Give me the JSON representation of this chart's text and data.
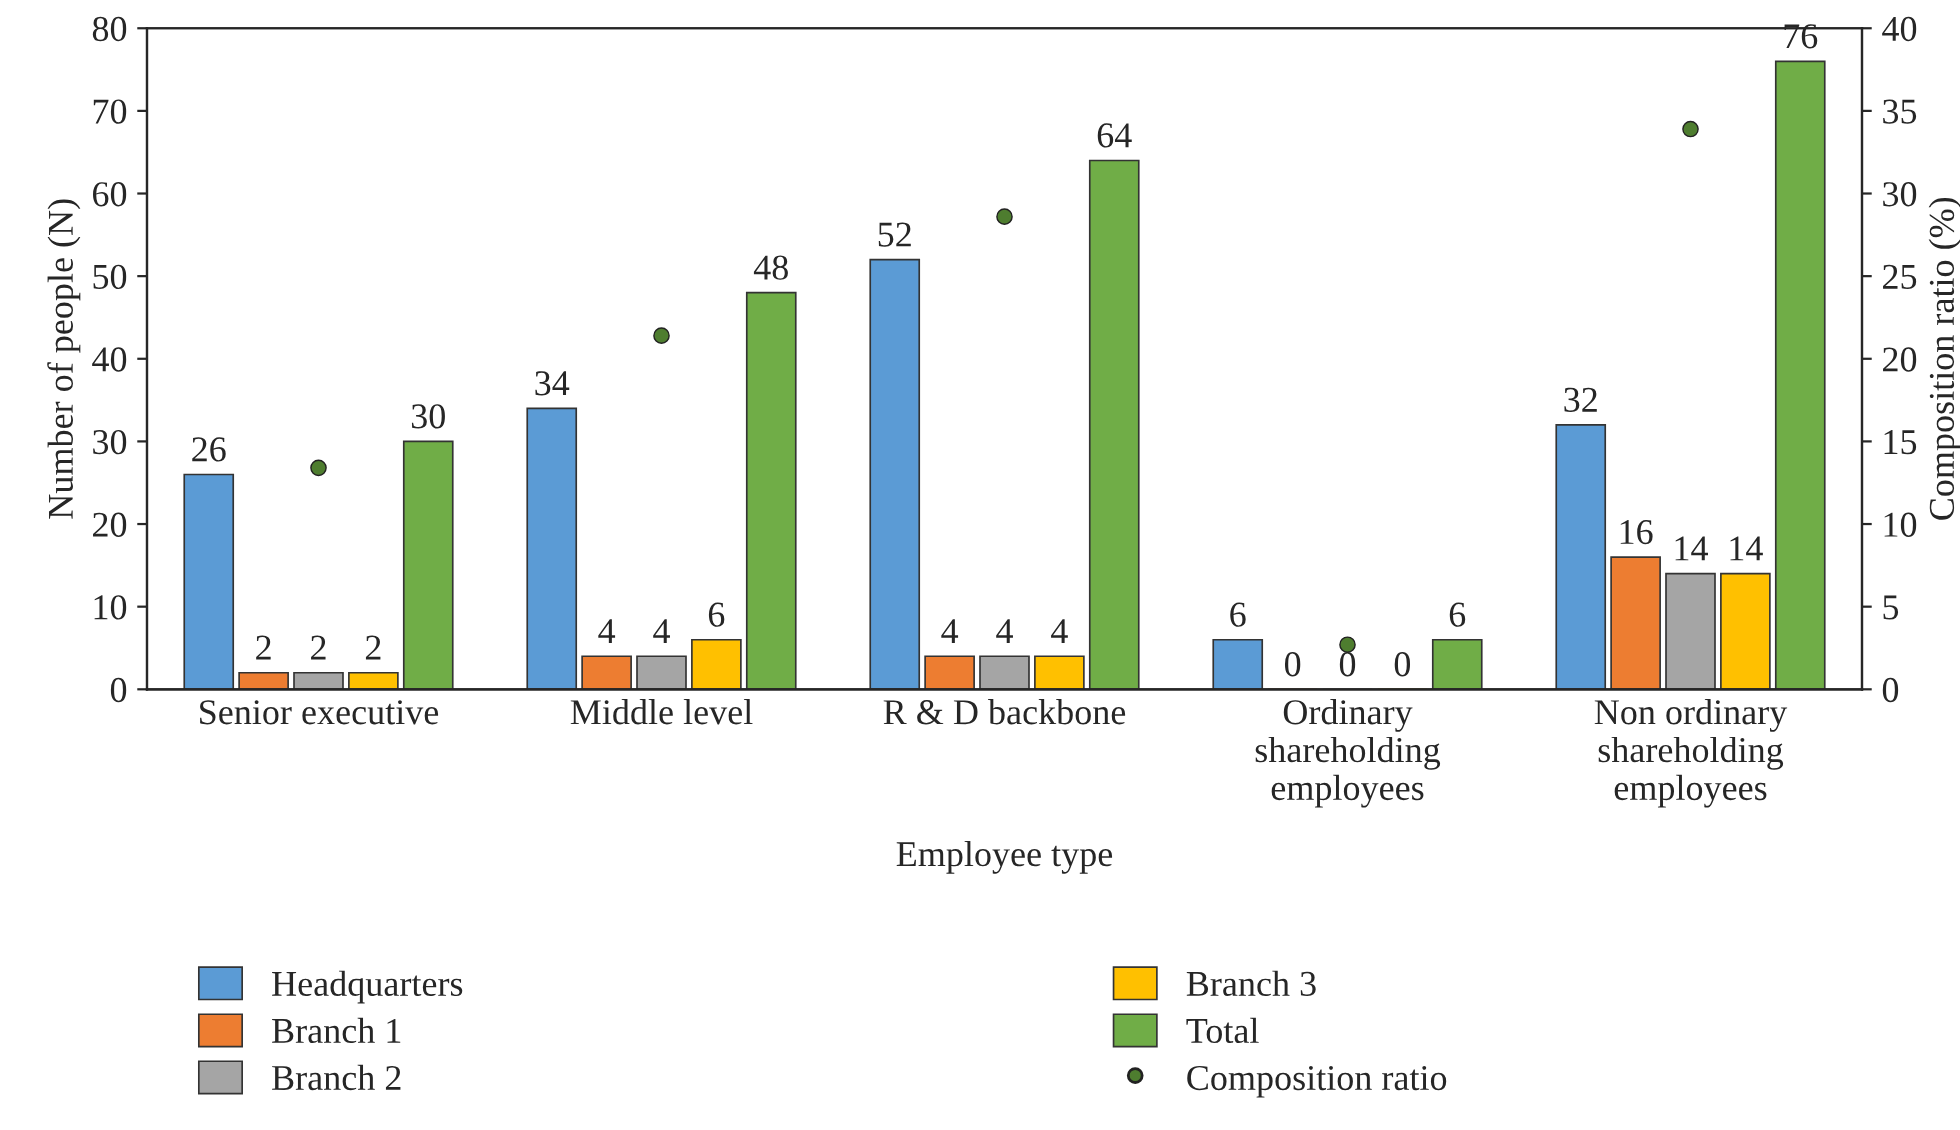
{
  "chart_data": {
    "type": "bar",
    "xlabel": "Employee type",
    "ylabel": "Number of people (N)",
    "y2label": "Composition ratio (%)",
    "categories": [
      "Senior executive",
      "Middle level",
      "R & D backbone",
      "Ordinary\nshareholding\nemployees",
      "Non ordinary\nshareholding\nemployees"
    ],
    "series": [
      {
        "name": "Headquarters",
        "color": "#5b9bd5",
        "values": [
          26,
          34,
          52,
          6,
          32
        ],
        "value_labels": [
          "26",
          "34",
          "52",
          "6",
          "32"
        ]
      },
      {
        "name": "Branch 1",
        "color": "#ed7d31",
        "values": [
          2,
          4,
          4,
          0,
          16
        ],
        "value_labels": [
          "2",
          "4",
          "4",
          "0",
          "16"
        ]
      },
      {
        "name": "Branch 2",
        "color": "#a5a5a5",
        "values": [
          2,
          4,
          4,
          0,
          14
        ],
        "value_labels": [
          "2",
          "4",
          "4",
          "0",
          "14"
        ]
      },
      {
        "name": "Branch 3",
        "color": "#ffc000",
        "values": [
          2,
          6,
          4,
          0,
          14
        ],
        "value_labels": [
          "2",
          "6",
          "4",
          "0",
          "14"
        ]
      },
      {
        "name": "Total",
        "color": "#70ad47",
        "values": [
          30,
          48,
          64,
          6,
          76
        ],
        "value_labels": [
          "30",
          "48",
          "64",
          "6",
          "76"
        ]
      },
      {
        "name": "Composition ratio",
        "type": "scatter",
        "axis": "y2",
        "color": "#4e7d2f",
        "marker": "circle",
        "x": [
          "Senior executive",
          "Middle level",
          "R & D backbone",
          "Ordinary\nshareholding\nemployees",
          "Non ordinary\nshareholding\nemployees"
        ],
        "values": [
          13.4,
          21.4,
          28.6,
          2.7,
          33.9
        ]
      }
    ],
    "ylim": [
      0,
      80
    ],
    "yticks": [
      0,
      10,
      20,
      30,
      40,
      50,
      60,
      70,
      80
    ],
    "y2lim": [
      0,
      40
    ],
    "y2ticks": [
      0,
      5,
      10,
      15,
      20,
      25,
      30,
      35,
      40
    ],
    "legend": "bottom",
    "grid": false
  }
}
